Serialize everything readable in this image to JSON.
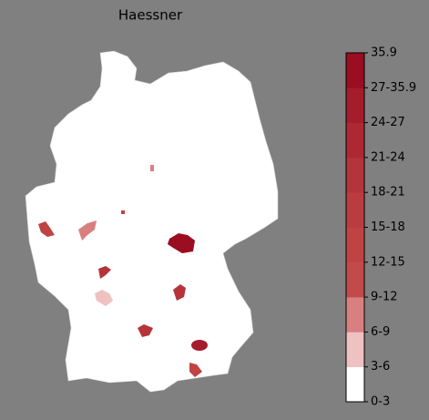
{
  "title": "Haessner",
  "colorbar": {
    "labels": [
      "0-3",
      "3-6",
      "6-9",
      "9-12",
      "12-15",
      "15-18",
      "18-21",
      "21-24",
      "24-27",
      "27-35.9",
      "35.9"
    ],
    "colors": [
      "#ffffff",
      "#efc1c1",
      "#d88080",
      "#c34a4a",
      "#c04343",
      "#bb3c40",
      "#b5333a",
      "#ad2832",
      "#a51c2b",
      "#9b0d21"
    ]
  }
}
